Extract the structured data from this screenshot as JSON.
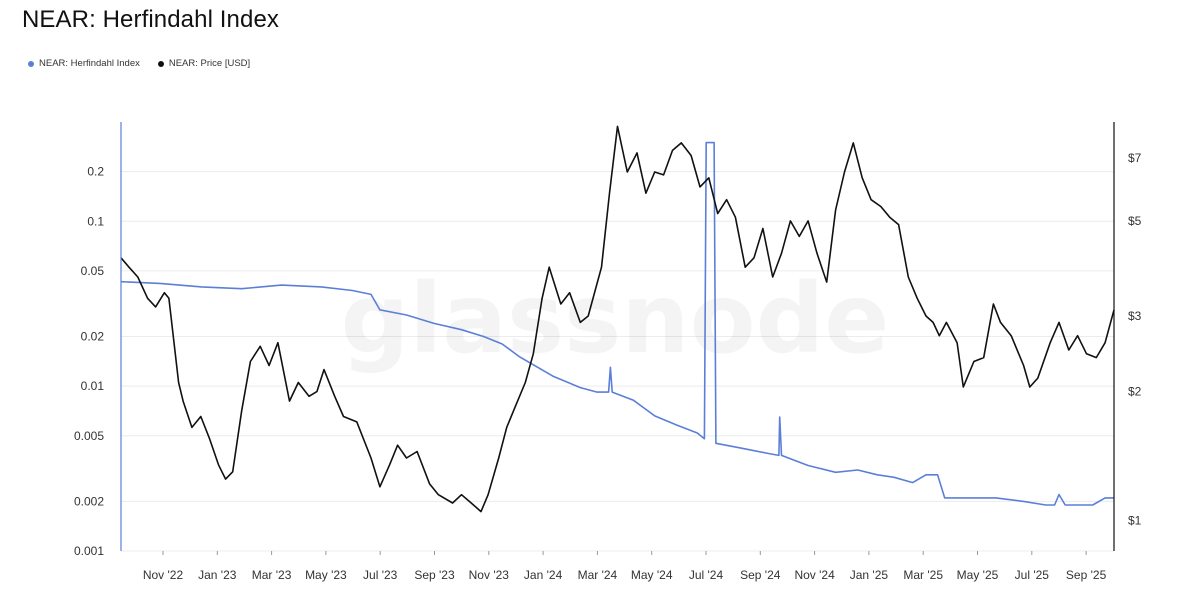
{
  "header": {
    "title": "NEAR: Herfindahl Index"
  },
  "legend": [
    {
      "label": "NEAR: Herfindahl Index",
      "color": "#5b7fd8"
    },
    {
      "label": "NEAR: Price [USD]",
      "color": "#111111"
    }
  ],
  "watermark": "glassnode",
  "chart_data": {
    "type": "line",
    "title": "NEAR: Herfindahl Index",
    "x_tick_labels": [
      "Nov '22",
      "Jan '23",
      "Mar '23",
      "May '23",
      "Jul '23",
      "Sep '23",
      "Nov '23",
      "Jan '24",
      "Mar '24",
      "May '24",
      "Jul '24",
      "Sep '24",
      "Nov '24",
      "Jan '25",
      "Mar '25",
      "May '25",
      "Jul '25",
      "Sep '25"
    ],
    "x_range": [
      "2022-09-01",
      "2025-09-25"
    ],
    "y_left": {
      "scale": "log",
      "range": [
        0.001,
        0.4
      ],
      "tick_labels": [
        "0.001",
        "0.002",
        "0.005",
        "0.01",
        "0.02",
        "0.05",
        "0.1",
        "0.2"
      ],
      "tick_values": [
        0.001,
        0.002,
        0.005,
        0.01,
        0.02,
        0.05,
        0.1,
        0.2
      ]
    },
    "y_right": {
      "scale": "log",
      "range": [
        0.85,
        8.5
      ],
      "tick_labels": [
        "$1",
        "$2",
        "$3",
        "$5",
        "$7"
      ],
      "tick_values": [
        1,
        2,
        3,
        5,
        7
      ]
    },
    "grid": "horizontal",
    "legend_position": "top-left",
    "series": [
      {
        "name": "NEAR: Herfindahl Index",
        "axis": "left",
        "color": "#5b7fd8",
        "points": [
          [
            "2022-09-01",
            0.043
          ],
          [
            "2022-10-15",
            0.042
          ],
          [
            "2022-12-01",
            0.04
          ],
          [
            "2023-01-15",
            0.039
          ],
          [
            "2023-03-01",
            0.041
          ],
          [
            "2023-04-15",
            0.04
          ],
          [
            "2023-05-20",
            0.038
          ],
          [
            "2023-06-10",
            0.036
          ],
          [
            "2023-06-20",
            0.029
          ],
          [
            "2023-07-20",
            0.027
          ],
          [
            "2023-08-20",
            0.024
          ],
          [
            "2023-09-20",
            0.022
          ],
          [
            "2023-10-15",
            0.02
          ],
          [
            "2023-11-05",
            0.018
          ],
          [
            "2023-11-25",
            0.015
          ],
          [
            "2023-12-15",
            0.013
          ],
          [
            "2024-01-01",
            0.0115
          ],
          [
            "2024-02-01",
            0.0098
          ],
          [
            "2024-02-20",
            0.0092
          ],
          [
            "2024-03-04",
            0.0092
          ],
          [
            "2024-03-06",
            0.013
          ],
          [
            "2024-03-08",
            0.0092
          ],
          [
            "2024-04-01",
            0.0082
          ],
          [
            "2024-04-25",
            0.0066
          ],
          [
            "2024-05-20",
            0.0058
          ],
          [
            "2024-06-12",
            0.0052
          ],
          [
            "2024-06-20",
            0.0048
          ],
          [
            "2024-06-22",
            0.3
          ],
          [
            "2024-07-01",
            0.3
          ],
          [
            "2024-07-03",
            0.0045
          ],
          [
            "2024-08-01",
            0.0042
          ],
          [
            "2024-09-01",
            0.0039
          ],
          [
            "2024-09-12",
            0.0038
          ],
          [
            "2024-09-13",
            0.0065
          ],
          [
            "2024-09-15",
            0.0038
          ],
          [
            "2024-10-15",
            0.0033
          ],
          [
            "2024-11-15",
            0.003
          ],
          [
            "2024-12-10",
            0.0031
          ],
          [
            "2025-01-01",
            0.0029
          ],
          [
            "2025-01-20",
            0.0028
          ],
          [
            "2025-02-10",
            0.0026
          ],
          [
            "2025-02-25",
            0.0029
          ],
          [
            "2025-03-10",
            0.0029
          ],
          [
            "2025-03-18",
            0.0021
          ],
          [
            "2025-04-15",
            0.0021
          ],
          [
            "2025-05-15",
            0.0021
          ],
          [
            "2025-06-15",
            0.002
          ],
          [
            "2025-07-10",
            0.0019
          ],
          [
            "2025-07-20",
            0.0019
          ],
          [
            "2025-07-25",
            0.0022
          ],
          [
            "2025-08-01",
            0.0019
          ],
          [
            "2025-09-01",
            0.0019
          ],
          [
            "2025-09-15",
            0.0021
          ],
          [
            "2025-09-25",
            0.0021
          ]
        ]
      },
      {
        "name": "NEAR: Price [USD]",
        "axis": "right",
        "color": "#111111",
        "points": [
          [
            "2022-09-01",
            4.1
          ],
          [
            "2022-09-10",
            3.9
          ],
          [
            "2022-09-20",
            3.7
          ],
          [
            "2022-10-01",
            3.3
          ],
          [
            "2022-10-10",
            3.15
          ],
          [
            "2022-10-20",
            3.4
          ],
          [
            "2022-10-25",
            3.3
          ],
          [
            "2022-11-05",
            2.1
          ],
          [
            "2022-11-10",
            1.9
          ],
          [
            "2022-11-20",
            1.65
          ],
          [
            "2022-11-30",
            1.75
          ],
          [
            "2022-12-10",
            1.55
          ],
          [
            "2022-12-20",
            1.35
          ],
          [
            "2022-12-28",
            1.25
          ],
          [
            "2023-01-05",
            1.3
          ],
          [
            "2023-01-15",
            1.8
          ],
          [
            "2023-01-25",
            2.35
          ],
          [
            "2023-02-05",
            2.55
          ],
          [
            "2023-02-15",
            2.3
          ],
          [
            "2023-02-25",
            2.6
          ],
          [
            "2023-03-10",
            1.9
          ],
          [
            "2023-03-20",
            2.1
          ],
          [
            "2023-04-01",
            1.95
          ],
          [
            "2023-04-10",
            2.0
          ],
          [
            "2023-04-18",
            2.25
          ],
          [
            "2023-04-30",
            1.95
          ],
          [
            "2023-05-10",
            1.75
          ],
          [
            "2023-05-25",
            1.7
          ],
          [
            "2023-06-10",
            1.4
          ],
          [
            "2023-06-20",
            1.2
          ],
          [
            "2023-07-01",
            1.35
          ],
          [
            "2023-07-10",
            1.5
          ],
          [
            "2023-07-20",
            1.4
          ],
          [
            "2023-08-01",
            1.45
          ],
          [
            "2023-08-15",
            1.22
          ],
          [
            "2023-08-25",
            1.15
          ],
          [
            "2023-09-10",
            1.1
          ],
          [
            "2023-09-20",
            1.15
          ],
          [
            "2023-10-01",
            1.1
          ],
          [
            "2023-10-12",
            1.05
          ],
          [
            "2023-10-20",
            1.15
          ],
          [
            "2023-11-01",
            1.4
          ],
          [
            "2023-11-10",
            1.65
          ],
          [
            "2023-11-20",
            1.85
          ],
          [
            "2023-12-01",
            2.1
          ],
          [
            "2023-12-10",
            2.45
          ],
          [
            "2023-12-20",
            3.3
          ],
          [
            "2023-12-28",
            3.9
          ],
          [
            "2024-01-10",
            3.2
          ],
          [
            "2024-01-20",
            3.4
          ],
          [
            "2024-02-01",
            2.9
          ],
          [
            "2024-02-10",
            3.0
          ],
          [
            "2024-02-25",
            3.9
          ],
          [
            "2024-03-05",
            5.8
          ],
          [
            "2024-03-14",
            8.3
          ],
          [
            "2024-03-25",
            6.5
          ],
          [
            "2024-04-05",
            7.2
          ],
          [
            "2024-04-15",
            5.8
          ],
          [
            "2024-04-25",
            6.5
          ],
          [
            "2024-05-05",
            6.4
          ],
          [
            "2024-05-15",
            7.3
          ],
          [
            "2024-05-25",
            7.6
          ],
          [
            "2024-06-05",
            7.1
          ],
          [
            "2024-06-15",
            6.0
          ],
          [
            "2024-06-25",
            6.3
          ],
          [
            "2024-07-05",
            5.2
          ],
          [
            "2024-07-15",
            5.6
          ],
          [
            "2024-07-25",
            5.1
          ],
          [
            "2024-08-05",
            3.9
          ],
          [
            "2024-08-15",
            4.1
          ],
          [
            "2024-08-25",
            4.8
          ],
          [
            "2024-09-05",
            3.7
          ],
          [
            "2024-09-15",
            4.2
          ],
          [
            "2024-09-25",
            5.0
          ],
          [
            "2024-10-05",
            4.6
          ],
          [
            "2024-10-15",
            5.0
          ],
          [
            "2024-10-25",
            4.2
          ],
          [
            "2024-11-05",
            3.6
          ],
          [
            "2024-11-15",
            5.3
          ],
          [
            "2024-11-25",
            6.5
          ],
          [
            "2024-12-05",
            7.6
          ],
          [
            "2024-12-15",
            6.3
          ],
          [
            "2024-12-25",
            5.6
          ],
          [
            "2025-01-05",
            5.4
          ],
          [
            "2025-01-15",
            5.1
          ],
          [
            "2025-01-25",
            4.9
          ],
          [
            "2025-02-05",
            3.7
          ],
          [
            "2025-02-15",
            3.3
          ],
          [
            "2025-02-25",
            3.0
          ],
          [
            "2025-03-05",
            2.9
          ],
          [
            "2025-03-12",
            2.7
          ],
          [
            "2025-03-20",
            2.9
          ],
          [
            "2025-04-01",
            2.6
          ],
          [
            "2025-04-08",
            2.05
          ],
          [
            "2025-04-20",
            2.35
          ],
          [
            "2025-05-01",
            2.4
          ],
          [
            "2025-05-12",
            3.2
          ],
          [
            "2025-05-20",
            2.9
          ],
          [
            "2025-06-01",
            2.7
          ],
          [
            "2025-06-15",
            2.3
          ],
          [
            "2025-06-22",
            2.05
          ],
          [
            "2025-07-01",
            2.15
          ],
          [
            "2025-07-15",
            2.6
          ],
          [
            "2025-07-25",
            2.9
          ],
          [
            "2025-08-05",
            2.5
          ],
          [
            "2025-08-15",
            2.7
          ],
          [
            "2025-08-25",
            2.45
          ],
          [
            "2025-09-05",
            2.4
          ],
          [
            "2025-09-15",
            2.6
          ],
          [
            "2025-09-25",
            3.1
          ]
        ]
      }
    ]
  }
}
